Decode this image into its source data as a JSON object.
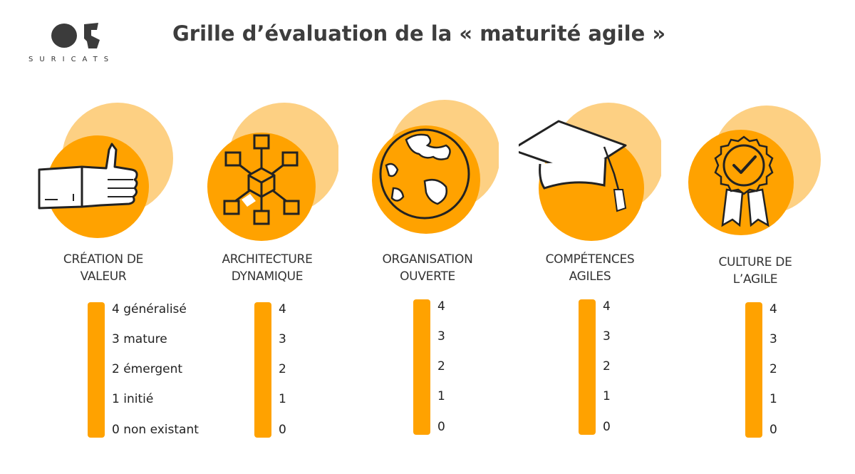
{
  "brand": {
    "name": "SURICATS"
  },
  "title": "Grille d’évaluation de la « maturité agile »",
  "colors": {
    "accent": "#ffa200",
    "accent_light": "#fdd083",
    "text": "#3d3d3d"
  },
  "pillars": [
    {
      "title_line1": "CRÉATION DE",
      "title_line2": "VALEUR",
      "icon": "thumbs-up-icon",
      "levels": [
        "4 généralisé",
        "3 mature",
        "2 émergent",
        "1 initié",
        "0 non existant"
      ]
    },
    {
      "title_line1": "ARCHITECTURE",
      "title_line2": "DYNAMIQUE",
      "icon": "network-cube-icon",
      "levels": [
        "4",
        "3",
        "2",
        "1",
        "0"
      ]
    },
    {
      "title_line1": "ORGANISATION",
      "title_line2": "OUVERTE",
      "icon": "globe-icon",
      "levels": [
        "4",
        "3",
        "2",
        "1",
        "0"
      ]
    },
    {
      "title_line1": "COMPÉTENCES",
      "title_line2": "AGILES",
      "icon": "graduation-cap-icon",
      "levels": [
        "4",
        "3",
        "2",
        "1",
        "0"
      ]
    },
    {
      "title_line1": "CULTURE DE",
      "title_line2": "L’AGILE",
      "icon": "award-badge-icon",
      "levels": [
        "4",
        "3",
        "2",
        "1",
        "0"
      ]
    }
  ]
}
